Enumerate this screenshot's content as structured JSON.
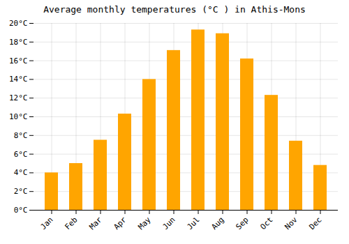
{
  "chart_data": {
    "type": "bar",
    "title": "Average monthly temperatures (°C ) in Athis-Mons",
    "categories": [
      "Jan",
      "Feb",
      "Mar",
      "Apr",
      "May",
      "Jun",
      "Jul",
      "Aug",
      "Sep",
      "Oct",
      "Nov",
      "Dec"
    ],
    "values": [
      4.0,
      5.0,
      7.5,
      10.3,
      14.0,
      17.1,
      19.3,
      18.9,
      16.2,
      12.3,
      7.4,
      4.8
    ],
    "color": "#FFA500",
    "ylim": [
      0,
      20
    ],
    "yticks": [
      {
        "value": 0,
        "label": "0°C"
      },
      {
        "value": 2,
        "label": "2°C"
      },
      {
        "value": 4,
        "label": "4°C"
      },
      {
        "value": 6,
        "label": "6°C"
      },
      {
        "value": 8,
        "label": "8°C"
      },
      {
        "value": 10,
        "label": "10°C"
      },
      {
        "value": 12,
        "label": "12°C"
      },
      {
        "value": 14,
        "label": "14°C"
      },
      {
        "value": 16,
        "label": "16°C"
      },
      {
        "value": 18,
        "label": "18°C"
      },
      {
        "value": 20,
        "label": "20°C"
      }
    ],
    "grid": true
  }
}
